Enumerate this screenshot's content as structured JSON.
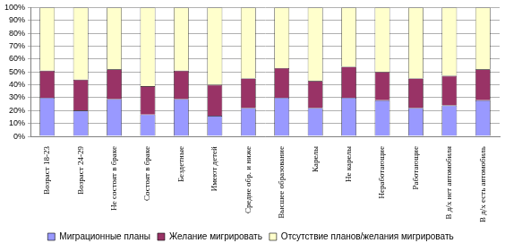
{
  "chart_data": {
    "type": "bar",
    "stacked": true,
    "grid": true,
    "legend": "bottom",
    "categories": [
      "Возраст 18-23",
      "Возраст 24-29",
      "Не состоят в браке",
      "Состоят в браке",
      "Бездетные",
      "Имеют детей",
      "Средне обр. и ниже",
      "Высшее образование",
      "Карелы",
      "Не карелы",
      "Неработающие",
      "Работающие",
      "В д/х нет автомобиля",
      "В д/х есть автомобиль"
    ],
    "series": [
      {
        "name": "Миграционные планы",
        "color": "#9999ff",
        "values": [
          30,
          20,
          29,
          17,
          29,
          16,
          22,
          30,
          22,
          30,
          28,
          22,
          24,
          28
        ]
      },
      {
        "name": "Желание мигрировать",
        "color": "#993366",
        "values": [
          21,
          24,
          23,
          22,
          22,
          24,
          23,
          23,
          21,
          24,
          22,
          23,
          23,
          24
        ]
      },
      {
        "name": "Отсутствие планов/желания мигрировать",
        "color": "#ffffcc",
        "values": [
          49,
          56,
          48,
          61,
          49,
          60,
          55,
          47,
          57,
          46,
          50,
          55,
          53,
          48
        ]
      }
    ],
    "ylim": [
      0,
      100
    ],
    "yticks": [
      {
        "value": 0,
        "label": "0%"
      },
      {
        "value": 10,
        "label": "10%"
      },
      {
        "value": 20,
        "label": "20%"
      },
      {
        "value": 30,
        "label": "30%"
      },
      {
        "value": 40,
        "label": "40%"
      },
      {
        "value": 50,
        "label": "50%"
      },
      {
        "value": 60,
        "label": "60%"
      },
      {
        "value": 70,
        "label": "70%"
      },
      {
        "value": 80,
        "label": "80%"
      },
      {
        "value": 90,
        "label": "90%"
      },
      {
        "value": 100,
        "label": "100%"
      }
    ]
  }
}
